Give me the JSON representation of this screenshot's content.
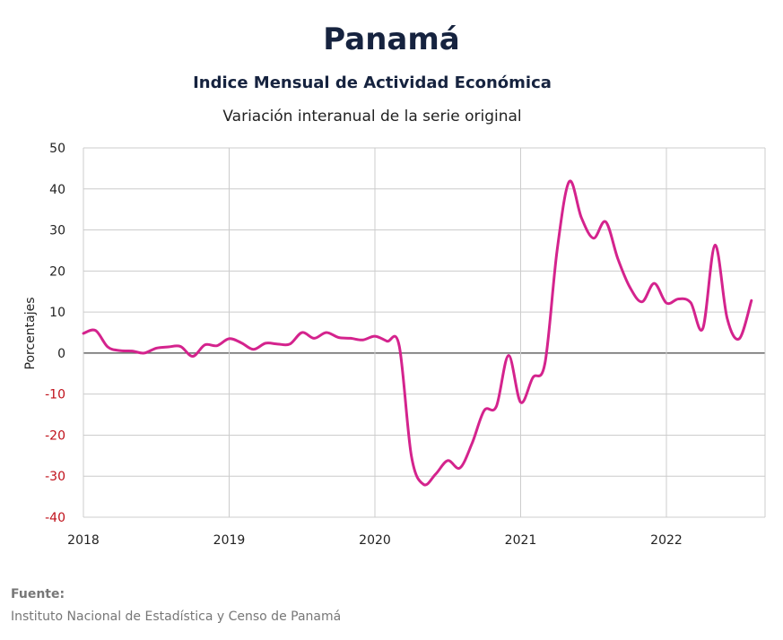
{
  "header": {
    "title": "Panamá",
    "subtitle": "Indice Mensual de  Actividad Económica",
    "subtitle2": "Variación interanual de la serie original"
  },
  "footer": {
    "source_label": "Fuente:",
    "source_text": "Instituto Nacional de Estadística y Censo de Panamá"
  },
  "colors": {
    "line": "#d4238d",
    "negative_tick": "#c0101a",
    "positive_tick": "#222222",
    "grid": "#cccccc",
    "zero_line": "#666666"
  },
  "chart_data": {
    "type": "line",
    "title": "Variación interanual de la serie original",
    "xlabel": "",
    "ylabel": "Porcentajes",
    "ylim": [
      -40,
      50
    ],
    "xlim": [
      "2018-01",
      "2022-08"
    ],
    "y_ticks": [
      "50",
      "40",
      "30",
      "20",
      "10",
      "0",
      "-10",
      "-20",
      "-30",
      "-40"
    ],
    "x_ticks": [
      "2018",
      "2019",
      "2020",
      "2021",
      "2022"
    ],
    "grid": true,
    "series": [
      {
        "x": [
          "2018-01",
          "2018-02",
          "2018-03",
          "2018-04",
          "2018-05",
          "2018-06",
          "2018-07",
          "2018-08",
          "2018-09",
          "2018-10",
          "2018-11",
          "2018-12",
          "2019-01",
          "2019-02",
          "2019-03",
          "2019-04",
          "2019-05",
          "2019-06",
          "2019-07",
          "2019-08",
          "2019-09",
          "2019-10",
          "2019-11",
          "2019-12",
          "2020-01",
          "2020-02",
          "2020-03",
          "2020-04",
          "2020-05",
          "2020-06",
          "2020-07",
          "2020-08",
          "2020-09",
          "2020-10",
          "2020-11",
          "2020-12",
          "2021-01",
          "2021-02",
          "2021-03",
          "2021-04",
          "2021-05",
          "2021-06",
          "2021-07",
          "2021-08",
          "2021-09",
          "2021-10",
          "2021-11",
          "2021-12",
          "2022-01",
          "2022-02",
          "2022-03",
          "2022-04",
          "2022-05",
          "2022-06",
          "2022-07",
          "2022-08"
        ],
        "values": [
          4.8,
          5.5,
          1.5,
          0.6,
          0.5,
          0.0,
          1.2,
          1.5,
          1.6,
          -0.8,
          2.0,
          1.8,
          3.5,
          2.5,
          0.9,
          2.4,
          2.2,
          2.2,
          5.0,
          3.6,
          5.0,
          3.8,
          3.6,
          3.2,
          4.1,
          2.9,
          1.8,
          -25.0,
          -32.0,
          -29.5,
          -26.2,
          -28.0,
          -22.0,
          -14.0,
          -13.0,
          -0.6,
          -12.0,
          -6.0,
          -2.5,
          25.0,
          41.8,
          33.0,
          28.0,
          32.0,
          23.0,
          16.0,
          12.5,
          17.0,
          12.2,
          13.2,
          12.3,
          6.0,
          26.3,
          8.5,
          3.5,
          12.8
        ]
      }
    ]
  }
}
